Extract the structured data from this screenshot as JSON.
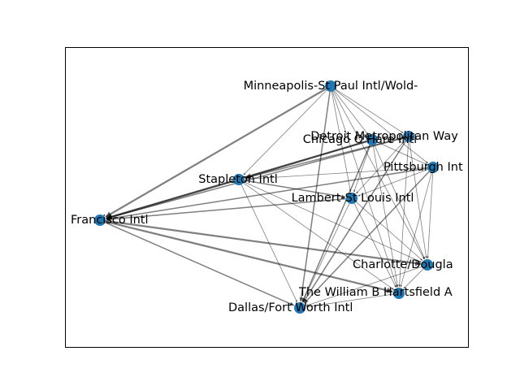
{
  "colors": {
    "background": "#ffffff",
    "frame": "#000000",
    "node": "#1f77b4",
    "edge": "#000000"
  },
  "graph": {
    "type": "directed-network",
    "nodes": [
      {
        "id": "MSP",
        "label": "Minneapolis-St Paul Intl/Wold-"
      },
      {
        "id": "DTW",
        "label": "Detroit Metropolitan Way"
      },
      {
        "id": "ORD",
        "label": "Chicago O'Hare Intl"
      },
      {
        "id": "PIT",
        "label": "Pittsburgh Int"
      },
      {
        "id": "DEN",
        "label": "Stapleton Intl"
      },
      {
        "id": "STL",
        "label": "Lambert-St Louis Intl"
      },
      {
        "id": "SFO",
        "label": "Francisco Intl"
      },
      {
        "id": "CLT",
        "label": "Charlotte/Dougla"
      },
      {
        "id": "ATL",
        "label": "The William B Hartsfield A"
      },
      {
        "id": "DFW",
        "label": "Dallas/Fort Worth Intl"
      }
    ],
    "edges": [
      {
        "source": "MSP",
        "target": "SFO",
        "weight": 3
      },
      {
        "source": "MSP",
        "target": "DEN",
        "weight": 1
      },
      {
        "source": "MSP",
        "target": "DTW",
        "weight": 1
      },
      {
        "source": "MSP",
        "target": "ORD",
        "weight": 1
      },
      {
        "source": "MSP",
        "target": "PIT",
        "weight": 1
      },
      {
        "source": "MSP",
        "target": "STL",
        "weight": 1
      },
      {
        "source": "MSP",
        "target": "CLT",
        "weight": 1
      },
      {
        "source": "MSP",
        "target": "ATL",
        "weight": 1
      },
      {
        "source": "MSP",
        "target": "DFW",
        "weight": 2
      },
      {
        "source": "ORD",
        "target": "SFO",
        "weight": 3
      },
      {
        "source": "ORD",
        "target": "DEN",
        "weight": 3
      },
      {
        "source": "ORD",
        "target": "STL",
        "weight": 1
      },
      {
        "source": "ORD",
        "target": "CLT",
        "weight": 1
      },
      {
        "source": "ORD",
        "target": "ATL",
        "weight": 1
      },
      {
        "source": "ORD",
        "target": "DFW",
        "weight": 2
      },
      {
        "source": "ORD",
        "target": "PIT",
        "weight": 1
      },
      {
        "source": "DTW",
        "target": "SFO",
        "weight": 2
      },
      {
        "source": "DTW",
        "target": "DEN",
        "weight": 2
      },
      {
        "source": "DTW",
        "target": "STL",
        "weight": 1
      },
      {
        "source": "DTW",
        "target": "CLT",
        "weight": 1
      },
      {
        "source": "DTW",
        "target": "ATL",
        "weight": 1
      },
      {
        "source": "DTW",
        "target": "DFW",
        "weight": 2
      },
      {
        "source": "PIT",
        "target": "SFO",
        "weight": 2
      },
      {
        "source": "PIT",
        "target": "DEN",
        "weight": 1
      },
      {
        "source": "PIT",
        "target": "STL",
        "weight": 1
      },
      {
        "source": "PIT",
        "target": "CLT",
        "weight": 1
      },
      {
        "source": "PIT",
        "target": "ATL",
        "weight": 1
      },
      {
        "source": "PIT",
        "target": "DFW",
        "weight": 2
      },
      {
        "source": "DEN",
        "target": "SFO",
        "weight": 3
      },
      {
        "source": "DEN",
        "target": "STL",
        "weight": 2
      },
      {
        "source": "DEN",
        "target": "CLT",
        "weight": 1
      },
      {
        "source": "DEN",
        "target": "ATL",
        "weight": 1
      },
      {
        "source": "DEN",
        "target": "DFW",
        "weight": 1
      },
      {
        "source": "STL",
        "target": "SFO",
        "weight": 2
      },
      {
        "source": "STL",
        "target": "CLT",
        "weight": 1
      },
      {
        "source": "STL",
        "target": "ATL",
        "weight": 1
      },
      {
        "source": "STL",
        "target": "DFW",
        "weight": 1
      },
      {
        "source": "SFO",
        "target": "CLT",
        "weight": 3
      },
      {
        "source": "SFO",
        "target": "ATL",
        "weight": 3
      },
      {
        "source": "SFO",
        "target": "DFW",
        "weight": 2
      },
      {
        "source": "CLT",
        "target": "ATL",
        "weight": 1
      },
      {
        "source": "CLT",
        "target": "DFW",
        "weight": 1
      },
      {
        "source": "ATL",
        "target": "DFW",
        "weight": 1
      }
    ]
  }
}
